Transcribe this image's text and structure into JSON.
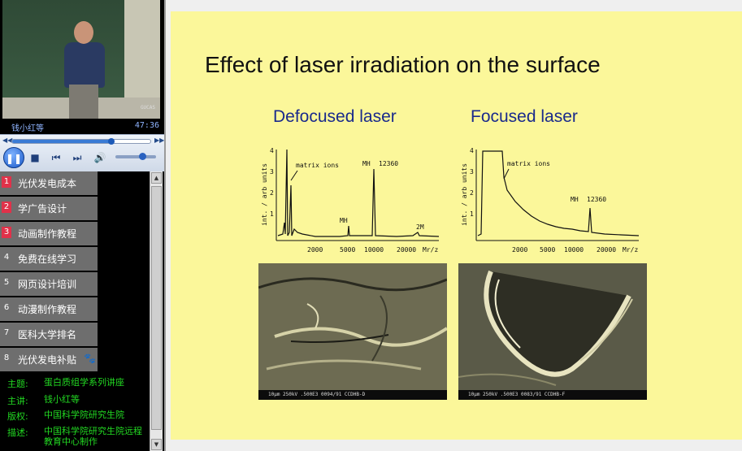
{
  "player": {
    "presenter_caption": "钱小红等",
    "time": "47:36",
    "seek_progress": 0.72,
    "volume": 0.65
  },
  "playlist": [
    {
      "num": "1",
      "label": "光伏发电成本",
      "highlight": true
    },
    {
      "num": "2",
      "label": "学广告设计",
      "highlight": true
    },
    {
      "num": "3",
      "label": "动画制作教程",
      "highlight": true
    },
    {
      "num": "4",
      "label": "免费在线学习",
      "highlight": false
    },
    {
      "num": "5",
      "label": "网页设计培训",
      "highlight": false
    },
    {
      "num": "6",
      "label": "动漫制作教程",
      "highlight": false
    },
    {
      "num": "7",
      "label": "医科大学排名",
      "highlight": false
    },
    {
      "num": "8",
      "label": "光伏发电补贴",
      "highlight": false
    }
  ],
  "info": {
    "topic_key": "主题:",
    "topic": "蛋白质组学系列讲座",
    "speaker_key": "主讲:",
    "speaker": "钱小红等",
    "copyright_key": "版权:",
    "copyright": "中国科学院研究生院",
    "desc_key": "描述:",
    "desc": "中国科学院研究生院远程教育中心制作"
  },
  "slide": {
    "title": "Effect of laser irradiation on the surface",
    "left_title": "Defocused laser",
    "right_title": "Focused laser",
    "y_axis_label": "int. / arb units",
    "x_axis_label": "Mr/z",
    "x_ticks": [
      "2000",
      "5000",
      "10000",
      "20000"
    ],
    "y_ticks": [
      "4",
      "3",
      "2",
      "1"
    ],
    "annotations": {
      "matrix": "matrix ions",
      "mh": "MH",
      "mh_value": "12360",
      "mh2": "MH",
      "twom": "2M"
    },
    "sem_left_caption": "10µm 250kV .500E3 0094/91 CCDHB-D",
    "sem_right_caption": "10µm 250kV .500E3 0083/91 CCDHB-F"
  },
  "colors": {
    "slide_bg": "#fbf79a",
    "panel_title": "#1a2a8c",
    "info_text": "#22d822",
    "playlist_badge": "#e0324a"
  }
}
